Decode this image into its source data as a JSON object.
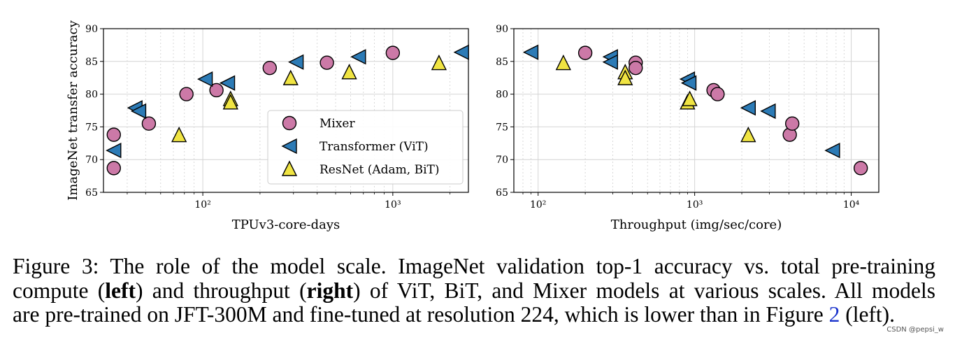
{
  "chart_data": [
    {
      "type": "scatter",
      "xscale": "log",
      "xlim": [
        30,
        2500
      ],
      "ylim": [
        65,
        90
      ],
      "xticks": [
        100,
        1000
      ],
      "xtick_labels": [
        "10²",
        "10³"
      ],
      "yticks": [
        65,
        70,
        75,
        80,
        85,
        90
      ],
      "xlabel": "TPUv3-core-days",
      "ylabel": "ImageNet transfer accuracy",
      "grid": true,
      "legend_position": "lower-right",
      "series": [
        {
          "name": "Mixer",
          "marker": "circle",
          "color": "#cc79a7",
          "x": [
            34,
            34,
            52,
            82,
            118,
            225,
            450,
            1000
          ],
          "y": [
            73.8,
            68.7,
            75.5,
            80.0,
            80.6,
            84.0,
            84.8,
            86.3
          ]
        },
        {
          "name": "Transformer (ViT)",
          "marker": "triangle-left",
          "color": "#2c7bb6",
          "x": [
            34,
            44,
            46,
            103,
            135,
            310,
            660,
            2300
          ],
          "y": [
            71.4,
            77.9,
            77.4,
            82.3,
            81.7,
            84.9,
            85.7,
            86.4
          ]
        },
        {
          "name": "ResNet (Adam, BiT)",
          "marker": "triangle-up",
          "color": "#f0e442",
          "x": [
            75,
            140,
            140,
            290,
            590,
            1750
          ],
          "y": [
            73.7,
            79.2,
            78.7,
            82.4,
            83.3,
            84.7
          ]
        }
      ]
    },
    {
      "type": "scatter",
      "xscale": "log",
      "xlim": [
        70,
        15000
      ],
      "ylim": [
        65,
        90
      ],
      "xticks": [
        100,
        1000,
        10000
      ],
      "xtick_labels": [
        "10²",
        "10³",
        "10⁴"
      ],
      "yticks": [
        65,
        70,
        75,
        80,
        85,
        90
      ],
      "xlabel": "Throughput (img/sec/core)",
      "ylabel": "",
      "grid": true,
      "series": [
        {
          "name": "Mixer",
          "marker": "circle",
          "color": "#cc79a7",
          "x": [
            200,
            420,
            420,
            1320,
            1400,
            4050,
            4200,
            11500
          ],
          "y": [
            86.3,
            84.8,
            84.0,
            80.6,
            80.0,
            73.8,
            75.5,
            68.7
          ]
        },
        {
          "name": "Transformer (ViT)",
          "marker": "triangle-left",
          "color": "#2c7bb6",
          "x": [
            90,
            290,
            290,
            900,
            920,
            2200,
            2950,
            7600
          ],
          "y": [
            86.4,
            85.7,
            84.9,
            82.3,
            81.7,
            77.9,
            77.4,
            71.4
          ]
        },
        {
          "name": "ResNet (Adam, BiT)",
          "marker": "triangle-up",
          "color": "#f0e442",
          "x": [
            145,
            360,
            360,
            900,
            930,
            2200
          ],
          "y": [
            84.7,
            83.3,
            82.4,
            78.7,
            79.2,
            73.7
          ]
        }
      ]
    }
  ],
  "caption": {
    "line1": "Figure 3: The role of the model scale. ImageNet validation top-1 accuracy vs. total pre-training",
    "line2_a": "compute (",
    "line2_b": "left",
    "line2_c": ") and throughput (",
    "line2_d": "right",
    "line2_e": ") of ViT, BiT, and Mixer models at various scales. All models",
    "line3_a": "are pre-trained on JFT-300M and fine-tuned at resolution 224, which is lower than in Figure ",
    "line3_ref": "2",
    "line3_b": " (left)."
  },
  "watermark": "CSDN @pepsi_w"
}
